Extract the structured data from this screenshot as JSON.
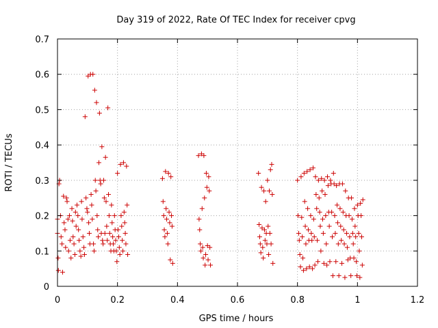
{
  "chart_data": {
    "type": "scatter",
    "title": "Day 319 of 2022, Rate Of TEC Index for receiver cpvg",
    "xlabel": "GPS time / hours",
    "ylabel": "ROTI / TECUs",
    "xlim": [
      0,
      1.2
    ],
    "ylim": [
      0,
      0.7
    ],
    "xticks": [
      0,
      0.2,
      0.4,
      0.6,
      0.8,
      1,
      1.2
    ],
    "xtick_labels": [
      "0",
      "0.2",
      "0.4",
      "0.6",
      "0.8",
      "1",
      "1.2"
    ],
    "yticks": [
      0,
      0.1,
      0.2,
      0.3,
      0.4,
      0.5,
      0.6,
      0.7
    ],
    "ytick_labels": [
      "0",
      "0.1",
      "0.2",
      "0.3",
      "0.4",
      "0.5",
      "0.6",
      "0.7"
    ],
    "grid": true,
    "marker": "plus",
    "color": "#cc0000",
    "series": [
      {
        "points": [
          [
            0.0,
            0.19
          ],
          [
            0.0,
            0.15
          ],
          [
            0.002,
            0.08
          ],
          [
            0.003,
            0.045
          ],
          [
            0.005,
            0.29
          ],
          [
            0.007,
            0.3
          ],
          [
            0.01,
            0.2
          ],
          [
            0.012,
            0.14
          ],
          [
            0.015,
            0.12
          ],
          [
            0.017,
            0.04
          ],
          [
            0.02,
            0.255
          ],
          [
            0.022,
            0.18
          ],
          [
            0.025,
            0.16
          ],
          [
            0.027,
            0.11
          ],
          [
            0.03,
            0.25
          ],
          [
            0.032,
            0.24
          ],
          [
            0.035,
            0.19
          ],
          [
            0.037,
            0.1
          ],
          [
            0.04,
            0.2
          ],
          [
            0.042,
            0.13
          ],
          [
            0.045,
            0.08
          ],
          [
            0.048,
            0.22
          ],
          [
            0.05,
            0.185
          ],
          [
            0.052,
            0.14
          ],
          [
            0.055,
            0.12
          ],
          [
            0.058,
            0.09
          ],
          [
            0.06,
            0.21
          ],
          [
            0.062,
            0.17
          ],
          [
            0.065,
            0.23
          ],
          [
            0.068,
            0.2
          ],
          [
            0.07,
            0.16
          ],
          [
            0.072,
            0.13
          ],
          [
            0.075,
            0.1
          ],
          [
            0.078,
            0.085
          ],
          [
            0.08,
            0.24
          ],
          [
            0.082,
            0.19
          ],
          [
            0.085,
            0.14
          ],
          [
            0.088,
            0.11
          ],
          [
            0.09,
            0.09
          ],
          [
            0.092,
            0.48
          ],
          [
            0.095,
            0.25
          ],
          [
            0.098,
            0.22
          ],
          [
            0.1,
            0.21
          ],
          [
            0.102,
            0.595
          ],
          [
            0.104,
            0.18
          ],
          [
            0.106,
            0.15
          ],
          [
            0.108,
            0.12
          ],
          [
            0.11,
            0.6
          ],
          [
            0.112,
            0.26
          ],
          [
            0.114,
            0.23
          ],
          [
            0.116,
            0.19
          ],
          [
            0.118,
            0.6
          ],
          [
            0.12,
            0.12
          ],
          [
            0.122,
            0.1
          ],
          [
            0.124,
            0.555
          ],
          [
            0.126,
            0.3
          ],
          [
            0.128,
            0.27
          ],
          [
            0.13,
            0.52
          ],
          [
            0.132,
            0.2
          ],
          [
            0.134,
            0.16
          ],
          [
            0.136,
            0.14
          ],
          [
            0.138,
            0.35
          ],
          [
            0.14,
            0.49
          ],
          [
            0.142,
            0.3
          ],
          [
            0.144,
            0.29
          ],
          [
            0.146,
            0.15
          ],
          [
            0.148,
            0.395
          ],
          [
            0.15,
            0.13
          ],
          [
            0.152,
            0.12
          ],
          [
            0.154,
            0.3
          ],
          [
            0.156,
            0.25
          ],
          [
            0.158,
            0.15
          ],
          [
            0.16,
            0.365
          ],
          [
            0.162,
            0.24
          ],
          [
            0.164,
            0.17
          ],
          [
            0.166,
            0.13
          ],
          [
            0.168,
            0.505
          ],
          [
            0.17,
            0.26
          ],
          [
            0.172,
            0.2
          ],
          [
            0.174,
            0.15
          ],
          [
            0.176,
            0.12
          ],
          [
            0.178,
            0.1
          ],
          [
            0.18,
            0.23
          ],
          [
            0.182,
            0.18
          ],
          [
            0.184,
            0.14
          ],
          [
            0.186,
            0.12
          ],
          [
            0.188,
            0.1
          ],
          [
            0.19,
            0.2
          ],
          [
            0.192,
            0.16
          ],
          [
            0.194,
            0.13
          ],
          [
            0.196,
            0.1
          ],
          [
            0.198,
            0.07
          ],
          [
            0.2,
            0.32
          ],
          [
            0.202,
            0.16
          ],
          [
            0.204,
            0.14
          ],
          [
            0.206,
            0.11
          ],
          [
            0.208,
            0.09
          ],
          [
            0.21,
            0.345
          ],
          [
            0.212,
            0.2
          ],
          [
            0.214,
            0.17
          ],
          [
            0.216,
            0.13
          ],
          [
            0.218,
            0.1
          ],
          [
            0.22,
            0.35
          ],
          [
            0.222,
            0.21
          ],
          [
            0.224,
            0.18
          ],
          [
            0.226,
            0.15
          ],
          [
            0.228,
            0.12
          ],
          [
            0.23,
            0.34
          ],
          [
            0.232,
            0.23
          ],
          [
            0.234,
            0.09
          ],
          [
            0.35,
            0.305
          ],
          [
            0.352,
            0.24
          ],
          [
            0.354,
            0.2
          ],
          [
            0.356,
            0.16
          ],
          [
            0.358,
            0.14
          ],
          [
            0.36,
            0.325
          ],
          [
            0.362,
            0.22
          ],
          [
            0.364,
            0.19
          ],
          [
            0.366,
            0.15
          ],
          [
            0.368,
            0.12
          ],
          [
            0.37,
            0.32
          ],
          [
            0.372,
            0.21
          ],
          [
            0.374,
            0.18
          ],
          [
            0.376,
            0.075
          ],
          [
            0.378,
            0.31
          ],
          [
            0.38,
            0.2
          ],
          [
            0.382,
            0.17
          ],
          [
            0.384,
            0.065
          ],
          [
            0.47,
            0.37
          ],
          [
            0.472,
            0.19
          ],
          [
            0.474,
            0.16
          ],
          [
            0.476,
            0.12
          ],
          [
            0.478,
            0.1
          ],
          [
            0.48,
            0.375
          ],
          [
            0.482,
            0.22
          ],
          [
            0.484,
            0.11
          ],
          [
            0.486,
            0.08
          ],
          [
            0.488,
            0.37
          ],
          [
            0.49,
            0.25
          ],
          [
            0.492,
            0.06
          ],
          [
            0.494,
            0.09
          ],
          [
            0.496,
            0.32
          ],
          [
            0.498,
            0.28
          ],
          [
            0.5,
            0.115
          ],
          [
            0.502,
            0.075
          ],
          [
            0.504,
            0.31
          ],
          [
            0.506,
            0.27
          ],
          [
            0.508,
            0.11
          ],
          [
            0.51,
            0.06
          ],
          [
            0.67,
            0.32
          ],
          [
            0.672,
            0.175
          ],
          [
            0.674,
            0.14
          ],
          [
            0.676,
            0.12
          ],
          [
            0.678,
            0.095
          ],
          [
            0.68,
            0.28
          ],
          [
            0.682,
            0.165
          ],
          [
            0.684,
            0.11
          ],
          [
            0.686,
            0.08
          ],
          [
            0.688,
            0.27
          ],
          [
            0.69,
            0.16
          ],
          [
            0.692,
            0.13
          ],
          [
            0.694,
            0.24
          ],
          [
            0.696,
            0.15
          ],
          [
            0.698,
            0.12
          ],
          [
            0.7,
            0.3
          ],
          [
            0.702,
            0.17
          ],
          [
            0.704,
            0.09
          ],
          [
            0.706,
            0.27
          ],
          [
            0.708,
            0.15
          ],
          [
            0.71,
            0.33
          ],
          [
            0.712,
            0.12
          ],
          [
            0.714,
            0.345
          ],
          [
            0.716,
            0.26
          ],
          [
            0.718,
            0.065
          ],
          [
            0.8,
            0.3
          ],
          [
            0.802,
            0.2
          ],
          [
            0.804,
            0.15
          ],
          [
            0.806,
            0.13
          ],
          [
            0.808,
            0.09
          ],
          [
            0.81,
            0.055
          ],
          [
            0.812,
            0.31
          ],
          [
            0.814,
            0.195
          ],
          [
            0.816,
            0.14
          ],
          [
            0.818,
            0.08
          ],
          [
            0.82,
            0.045
          ],
          [
            0.822,
            0.32
          ],
          [
            0.824,
            0.24
          ],
          [
            0.826,
            0.17
          ],
          [
            0.828,
            0.12
          ],
          [
            0.83,
            0.05
          ],
          [
            0.832,
            0.325
          ],
          [
            0.834,
            0.22
          ],
          [
            0.836,
            0.16
          ],
          [
            0.838,
            0.13
          ],
          [
            0.84,
            0.055
          ],
          [
            0.842,
            0.33
          ],
          [
            0.844,
            0.2
          ],
          [
            0.846,
            0.15
          ],
          [
            0.848,
            0.13
          ],
          [
            0.85,
            0.05
          ],
          [
            0.852,
            0.335
          ],
          [
            0.854,
            0.19
          ],
          [
            0.856,
            0.14
          ],
          [
            0.858,
            0.06
          ],
          [
            0.86,
            0.31
          ],
          [
            0.862,
            0.26
          ],
          [
            0.864,
            0.22
          ],
          [
            0.866,
            0.13
          ],
          [
            0.868,
            0.07
          ],
          [
            0.87,
            0.3
          ],
          [
            0.872,
            0.25
          ],
          [
            0.874,
            0.21
          ],
          [
            0.876,
            0.17
          ],
          [
            0.878,
            0.1
          ],
          [
            0.88,
            0.305
          ],
          [
            0.882,
            0.27
          ],
          [
            0.884,
            0.19
          ],
          [
            0.886,
            0.15
          ],
          [
            0.888,
            0.065
          ],
          [
            0.89,
            0.3
          ],
          [
            0.892,
            0.26
          ],
          [
            0.894,
            0.2
          ],
          [
            0.896,
            0.12
          ],
          [
            0.898,
            0.06
          ],
          [
            0.9,
            0.31
          ],
          [
            0.902,
            0.285
          ],
          [
            0.904,
            0.21
          ],
          [
            0.906,
            0.17
          ],
          [
            0.908,
            0.07
          ],
          [
            0.91,
            0.3
          ],
          [
            0.912,
            0.29
          ],
          [
            0.914,
            0.21
          ],
          [
            0.916,
            0.14
          ],
          [
            0.918,
            0.03
          ],
          [
            0.92,
            0.32
          ],
          [
            0.922,
            0.29
          ],
          [
            0.924,
            0.2
          ],
          [
            0.926,
            0.15
          ],
          [
            0.928,
            0.07
          ],
          [
            0.93,
            0.285
          ],
          [
            0.932,
            0.23
          ],
          [
            0.934,
            0.18
          ],
          [
            0.936,
            0.12
          ],
          [
            0.938,
            0.03
          ],
          [
            0.94,
            0.29
          ],
          [
            0.942,
            0.22
          ],
          [
            0.944,
            0.17
          ],
          [
            0.946,
            0.13
          ],
          [
            0.948,
            0.065
          ],
          [
            0.95,
            0.29
          ],
          [
            0.952,
            0.21
          ],
          [
            0.954,
            0.16
          ],
          [
            0.956,
            0.12
          ],
          [
            0.958,
            0.025
          ],
          [
            0.96,
            0.27
          ],
          [
            0.962,
            0.2
          ],
          [
            0.964,
            0.15
          ],
          [
            0.966,
            0.11
          ],
          [
            0.968,
            0.075
          ],
          [
            0.97,
            0.25
          ],
          [
            0.972,
            0.2
          ],
          [
            0.974,
            0.14
          ],
          [
            0.976,
            0.08
          ],
          [
            0.978,
            0.03
          ],
          [
            0.98,
            0.25
          ],
          [
            0.982,
            0.19
          ],
          [
            0.984,
            0.15
          ],
          [
            0.986,
            0.12
          ],
          [
            0.988,
            0.08
          ],
          [
            0.99,
            0.22
          ],
          [
            0.992,
            0.17
          ],
          [
            0.994,
            0.14
          ],
          [
            0.996,
            0.07
          ],
          [
            0.998,
            0.03
          ],
          [
            1.0,
            0.23
          ],
          [
            1.002,
            0.2
          ],
          [
            1.004,
            0.15
          ],
          [
            1.006,
            0.1
          ],
          [
            1.008,
            0.025
          ],
          [
            1.01,
            0.235
          ],
          [
            1.012,
            0.2
          ],
          [
            1.014,
            0.14
          ],
          [
            1.016,
            0.06
          ],
          [
            1.018,
            0.245
          ]
        ]
      }
    ]
  }
}
